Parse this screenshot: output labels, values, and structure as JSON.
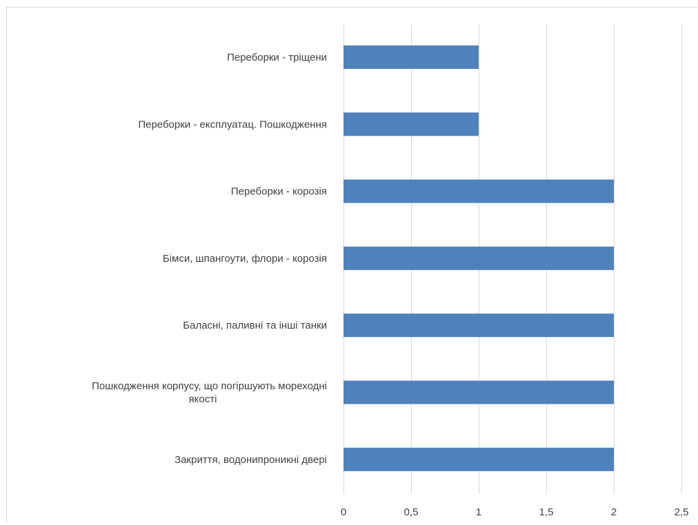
{
  "chart_data": {
    "type": "bar",
    "orientation": "horizontal",
    "categories": [
      [
        "Переборки - тріщени"
      ],
      [
        "Переборки -  експлуатац. Пошкодження"
      ],
      [
        "Переборки -  корозія"
      ],
      [
        "Бімси, шпангоути, флори - корозія"
      ],
      [
        "Баласні, паливні та інші танки"
      ],
      [
        "Пошкодження корпусу, що погіршують мореходні",
        "якості"
      ],
      [
        "Закриття, водонипроникні двері"
      ]
    ],
    "values": [
      1,
      1,
      2,
      2,
      2,
      2,
      2
    ],
    "xlim": [
      0,
      2.5
    ],
    "x_ticks": [
      0,
      0.5,
      1,
      1.5,
      2,
      2.5
    ],
    "x_tick_labels": [
      "0",
      "0,5",
      "1",
      "1,5",
      "2",
      "2,5"
    ],
    "grid": "vertical",
    "legend": "none",
    "bar_color": "#4f81bd",
    "grid_color": "#d9d9d9",
    "frame_color": "#d9d9d9",
    "title": "",
    "xlabel": "",
    "ylabel": ""
  }
}
